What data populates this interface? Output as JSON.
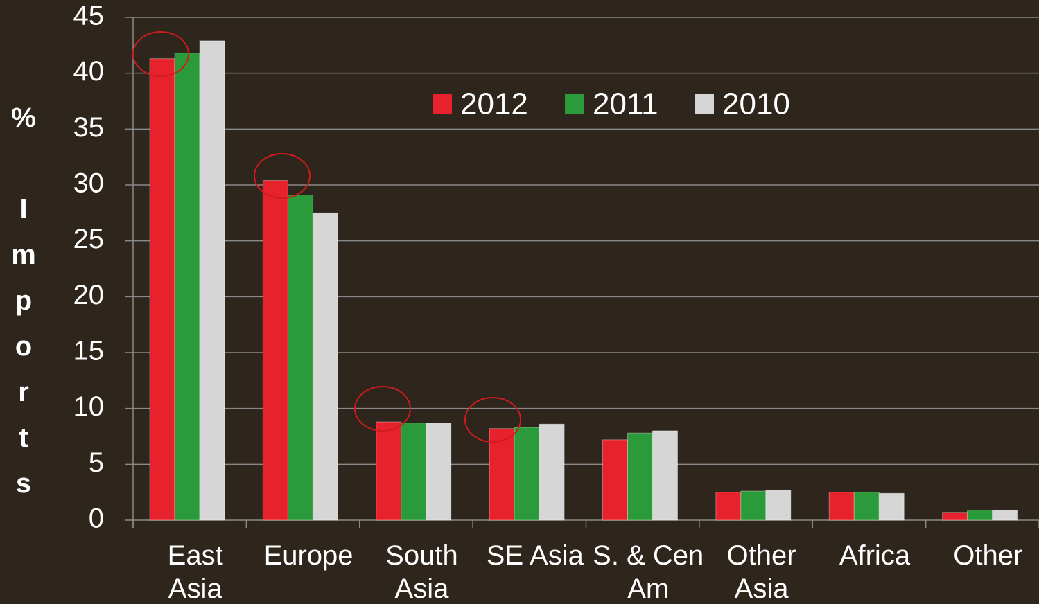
{
  "chart_data": {
    "type": "bar",
    "y_label": "% Imports",
    "categories": [
      "East Asia",
      "Europe",
      "South Asia",
      "SE Asia",
      "S. & Cen Am",
      "Other Asia",
      "Africa",
      "Other"
    ],
    "series": [
      {
        "name": "2012",
        "color": "#e8222c",
        "values": [
          41.3,
          30.4,
          8.8,
          8.2,
          7.2,
          2.5,
          2.5,
          0.7
        ]
      },
      {
        "name": "2011",
        "color": "#2b9a3b",
        "values": [
          41.8,
          29.1,
          8.7,
          8.3,
          7.8,
          2.6,
          2.5,
          0.9
        ]
      },
      {
        "name": "2010",
        "color": "#d6d6d6",
        "values": [
          42.9,
          27.5,
          8.7,
          8.6,
          8.0,
          2.7,
          2.4,
          0.9
        ]
      }
    ],
    "ylim": [
      0,
      45
    ],
    "yticks": [
      0,
      5,
      10,
      15,
      20,
      25,
      30,
      35,
      40,
      45
    ],
    "grid": true
  }
}
